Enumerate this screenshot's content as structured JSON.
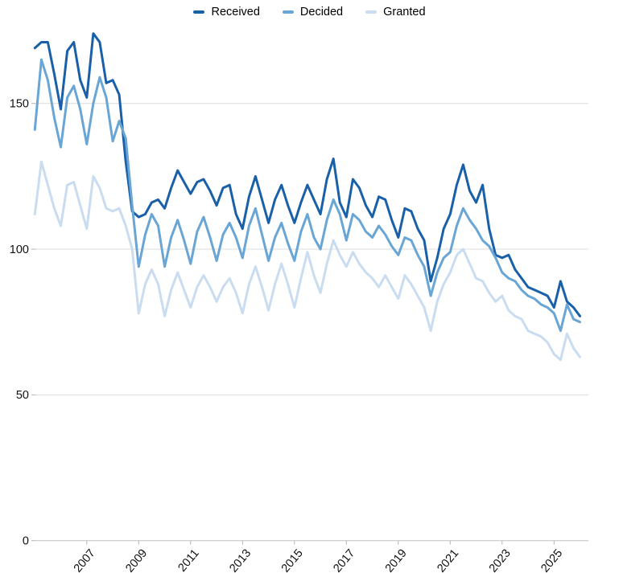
{
  "chart_data": {
    "type": "line",
    "title": "",
    "xlabel": "",
    "ylabel": "",
    "x_unit": "quarterly",
    "x_start": 2005.0,
    "x_step": 0.25,
    "x_tick_labels": [
      "2007",
      "2009",
      "2011",
      "2013",
      "2015",
      "2017",
      "2019",
      "2021",
      "2023",
      "2025"
    ],
    "x_ticks": [
      2007,
      2009,
      2011,
      2013,
      2015,
      2017,
      2019,
      2021,
      2023,
      2025
    ],
    "y_ticks": [
      0,
      50,
      100,
      150
    ],
    "y_tick_labels": [
      "0",
      "50",
      "100",
      "150"
    ],
    "ylim": [
      0,
      183
    ],
    "xlim": [
      2004.9,
      2026.7
    ],
    "grid": "horizontal",
    "legend_position": "top-center",
    "series": [
      {
        "name": "Received",
        "color": "#1a60a8",
        "values": [
          169,
          171,
          171,
          160,
          148,
          168,
          171,
          158,
          152,
          174,
          171,
          157,
          158,
          153,
          130,
          113,
          111,
          112,
          116,
          117,
          114,
          121,
          127,
          123,
          119,
          123,
          124,
          120,
          115,
          121,
          122,
          112,
          107,
          118,
          125,
          117,
          109,
          117,
          122,
          115,
          109,
          116,
          122,
          117,
          112,
          124,
          131,
          116,
          111,
          124,
          121,
          115,
          111,
          118,
          117,
          110,
          104,
          114,
          113,
          107,
          103,
          89,
          97,
          107,
          112,
          122,
          129,
          120,
          116,
          122,
          107,
          98,
          97,
          98,
          93,
          90,
          87,
          86,
          85,
          84,
          80,
          89,
          82,
          80,
          77
        ]
      },
      {
        "name": "Decided",
        "color": "#69a6d5",
        "values": [
          141,
          165,
          158,
          145,
          135,
          152,
          156,
          148,
          136,
          150,
          159,
          152,
          137,
          144,
          138,
          115,
          94,
          105,
          112,
          108,
          94,
          104,
          110,
          103,
          95,
          106,
          111,
          104,
          96,
          105,
          109,
          104,
          97,
          108,
          114,
          105,
          96,
          104,
          109,
          102,
          96,
          106,
          112,
          104,
          100,
          110,
          117,
          112,
          103,
          112,
          110,
          106,
          104,
          108,
          105,
          101,
          98,
          104,
          103,
          98,
          94,
          84,
          92,
          97,
          99,
          108,
          114,
          110,
          107,
          103,
          101,
          97,
          92,
          90,
          89,
          86,
          84,
          83,
          81,
          80,
          78,
          72,
          81,
          76,
          75
        ]
      },
      {
        "name": "Granted",
        "color": "#c9dcf0",
        "values": [
          112,
          130,
          122,
          114,
          108,
          122,
          123,
          115,
          107,
          125,
          121,
          114,
          113,
          114,
          108,
          100,
          78,
          88,
          93,
          88,
          77,
          86,
          92,
          86,
          80,
          87,
          91,
          87,
          82,
          87,
          90,
          85,
          78,
          88,
          94,
          87,
          79,
          88,
          95,
          88,
          80,
          90,
          99,
          91,
          85,
          95,
          103,
          98,
          94,
          99,
          95,
          92,
          90,
          87,
          91,
          87,
          83,
          91,
          88,
          84,
          80,
          72,
          82,
          88,
          92,
          98,
          100,
          95,
          90,
          89,
          85,
          82,
          84,
          79,
          77,
          76,
          72,
          71,
          70,
          68,
          64,
          62,
          71,
          66,
          63
        ]
      }
    ]
  },
  "colors": {
    "gridline": "#dcdcdc",
    "zero_axis": "#c2c2c2",
    "tick_mark": "#b5b5b5",
    "tick_text": "#111111",
    "background": "#ffffff"
  }
}
